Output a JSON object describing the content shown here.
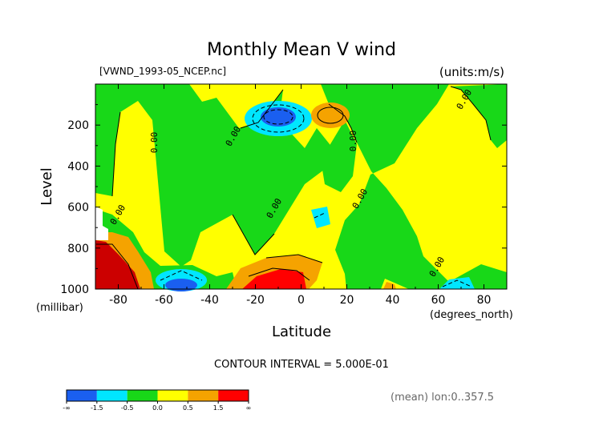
{
  "chart_data": {
    "type": "heatmap",
    "title": "Monthly Mean V wind",
    "file_label": "[VWND_1993-05_NCEP.nc]",
    "units_label": "(units:m/s)",
    "xlabel": "Latitude",
    "x_units": "(degrees_north)",
    "ylabel": "Level",
    "y_units": "(millibar)",
    "xlim": [
      -90,
      90
    ],
    "ylim": [
      1000,
      0
    ],
    "x_ticks": [
      -80,
      -60,
      -40,
      -20,
      0,
      20,
      40,
      60,
      80
    ],
    "y_ticks": [
      200,
      400,
      600,
      800,
      1000
    ],
    "contour_interval_text": "CONTOUR INTERVAL = 5.000E-01",
    "mean_note": "(mean) lon:0..357.5",
    "zero_contour_label": "0.00",
    "colorbar": {
      "labels": [
        "-∞",
        "-1.5",
        "-0.5",
        "0.0",
        "0.5",
        "1.5",
        "∞"
      ],
      "colors": [
        "#1a5ff0",
        "#00e6ff",
        "#18d818",
        "#ffff00",
        "#f5a300",
        "#ff0000"
      ]
    },
    "features": [
      {
        "kind": "max",
        "lat": -88,
        "lev": 1000,
        "value": 1.5
      },
      {
        "kind": "max",
        "lat": -14,
        "lev": 960,
        "value": 1.5
      },
      {
        "kind": "max",
        "lat": 12,
        "lev": 150,
        "value": 0.5
      },
      {
        "kind": "min",
        "lat": -10,
        "lev": 170,
        "value": -1.5
      },
      {
        "kind": "min",
        "lat": -52,
        "lev": 980,
        "value": -1.5
      },
      {
        "kind": "min",
        "lat": 10,
        "lev": 650,
        "value": -0.5
      },
      {
        "kind": "min",
        "lat": 70,
        "lev": 985,
        "value": -0.5
      }
    ]
  }
}
